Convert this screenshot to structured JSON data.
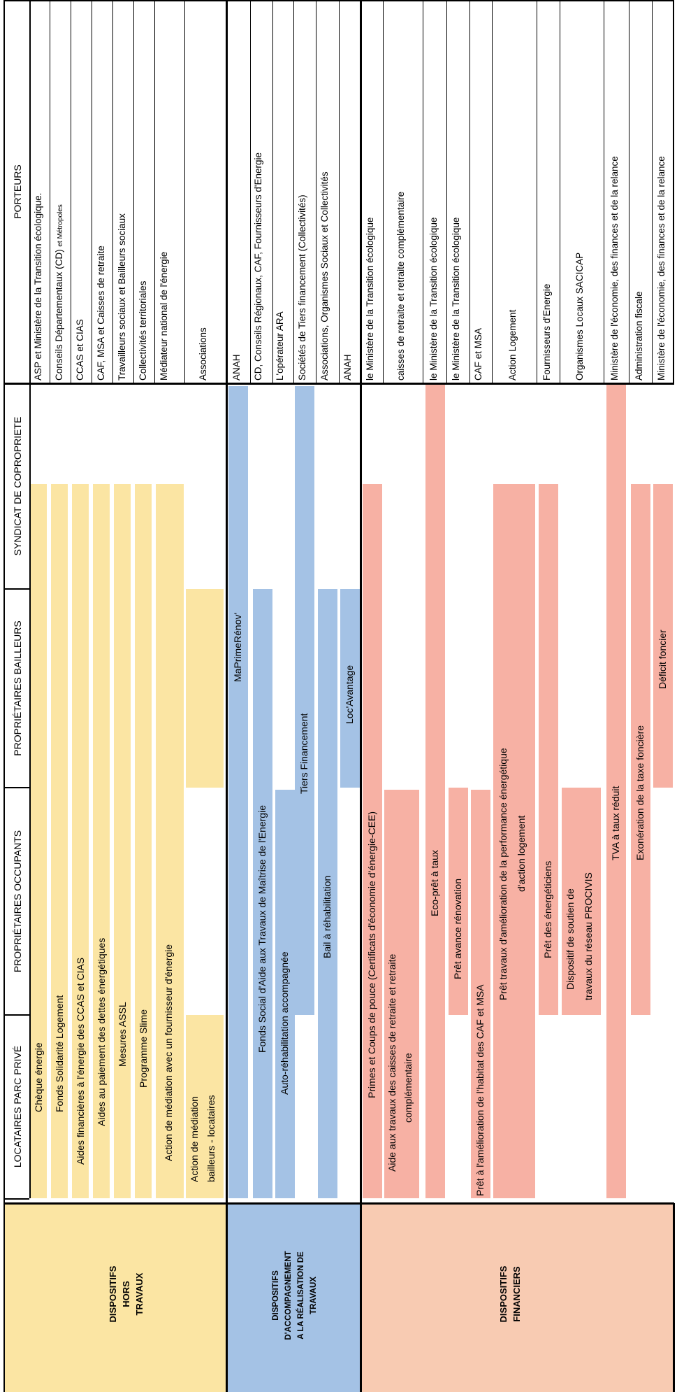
{
  "colors": {
    "yellow": "#fbe5a3",
    "blue": "#a4c2e5",
    "salmon": "#f7b1a4",
    "peach": "#f8cbb2"
  },
  "column_headers": {
    "locataires": "LOCATAIRES PARC PRIVÉ",
    "occupants": "PROPRIÉTAIRES OCCUPANTS",
    "bailleurs": "PROPRIÉTAIRES BAILLEURS",
    "syndicat": "SYNDICAT DE COPROPRIETE",
    "porteurs": "PORTEURS"
  },
  "sections": [
    {
      "title": "DISPOSITIFS HORS TRAVAUX",
      "color": "yellow"
    },
    {
      "title": "DISPOSITIFS D'ACCOMPAGNEMENT A LA RÉALISATION DE TRAVAUX",
      "color": "blue"
    },
    {
      "title": "DISPOSITIFS FINANCIERS",
      "color": "peach"
    }
  ],
  "rows": [
    {
      "label": "Chèque énergie",
      "color": "yellow",
      "porteur": "ASP et Ministère de la Transition écologique."
    },
    {
      "label": "Fonds Solidarité Logement",
      "color": "yellow",
      "porteur": "Conseils Départementaux (CD)",
      "porteur_small": "et Métropoles"
    },
    {
      "label": "Aides financières à l'énergie des CCAS et CIAS",
      "color": "yellow",
      "porteur": "CCAS et CIAS"
    },
    {
      "label": "Aides au paiement des dettes énergétiques",
      "color": "yellow",
      "porteur": "CAF, MSA et Caisses de retraite"
    },
    {
      "label": "Mesures ASSL",
      "color": "yellow",
      "porteur": "Travailleurs sociaux et Bailleurs sociaux"
    },
    {
      "label": "Programme Slime",
      "color": "yellow",
      "porteur": "Collectivités territoriales"
    },
    {
      "label": "Action de médiation avec un fournisseur d'énergie",
      "color": "yellow",
      "porteur": "Médiateur national de l'énergie"
    },
    {
      "label": "Action de médiation",
      "label2": "bailleurs - locataires",
      "color": "yellow",
      "porteur": "Associations"
    },
    {
      "label": "MaPrimeRénov'",
      "color": "blue",
      "porteur": "ANAH"
    },
    {
      "label": "Fonds Social d'Aide aux Travaux de Maîtrise de l'Energie",
      "color": "blue",
      "porteur": "CD, Conseils Régionaux, CAF, Fournisseurs d'Energie"
    },
    {
      "label": "Auto-réhabilitation accompagnée",
      "color": "blue",
      "porteur": "L'opérateur ARA"
    },
    {
      "label": "Tiers Financement",
      "color": "blue",
      "porteur": "Sociétés de Tiers financement  (Collectivités)"
    },
    {
      "label": "Bail à réhabilitation",
      "color": "blue",
      "porteur": "Associations, Organismes Sociaux et Collectivités"
    },
    {
      "label": "Loc'Avantage",
      "color": "blue",
      "porteur": "ANAH"
    },
    {
      "label": "Primes et Coups de pouce (Certificats d'économie d'énergie-CEE)",
      "color": "salmon",
      "porteur": "le Ministère de la Transition écologique"
    },
    {
      "label": "Aide aux travaux des caisses de retraite et retraite",
      "label2": "complémentaire",
      "color": "salmon",
      "porteur": "caisses de retraite et retraite complémentaire"
    },
    {
      "label": "Eco-prêt à taux",
      "color": "salmon",
      "porteur": "le Ministère de la Transition écologique"
    },
    {
      "label": "Prêt avance rénovation",
      "color": "salmon",
      "porteur": "le Ministère de la Transition écologique"
    },
    {
      "label": "Prêt à l'amélioration de l'habitat des CAF et MSA",
      "color": "salmon",
      "porteur": "CAF et MSA"
    },
    {
      "label": "Prêt travaux d'amélioration de la performance énergétique",
      "label2": "d'action logement",
      "color": "salmon",
      "porteur": "Action Logement"
    },
    {
      "label": "Prêt des énergéticiens",
      "color": "salmon",
      "porteur": "Fournisseurs d'Energie"
    },
    {
      "label": "Dispositif de soutien de",
      "label2": "travaux du réseau PROCIVIS",
      "color": "salmon",
      "porteur": "Organismes Locaux SACICAP"
    },
    {
      "label": "TVA à taux réduit",
      "color": "salmon",
      "porteur": "Ministère de l'économie, des finances et de la relance"
    },
    {
      "label": "Exonération de la taxe foncière",
      "color": "salmon",
      "porteur": "Administration fiscale"
    },
    {
      "label": "Déficit foncier",
      "color": "salmon",
      "porteur": "Ministère de l'économie, des finances et de la relance"
    }
  ]
}
